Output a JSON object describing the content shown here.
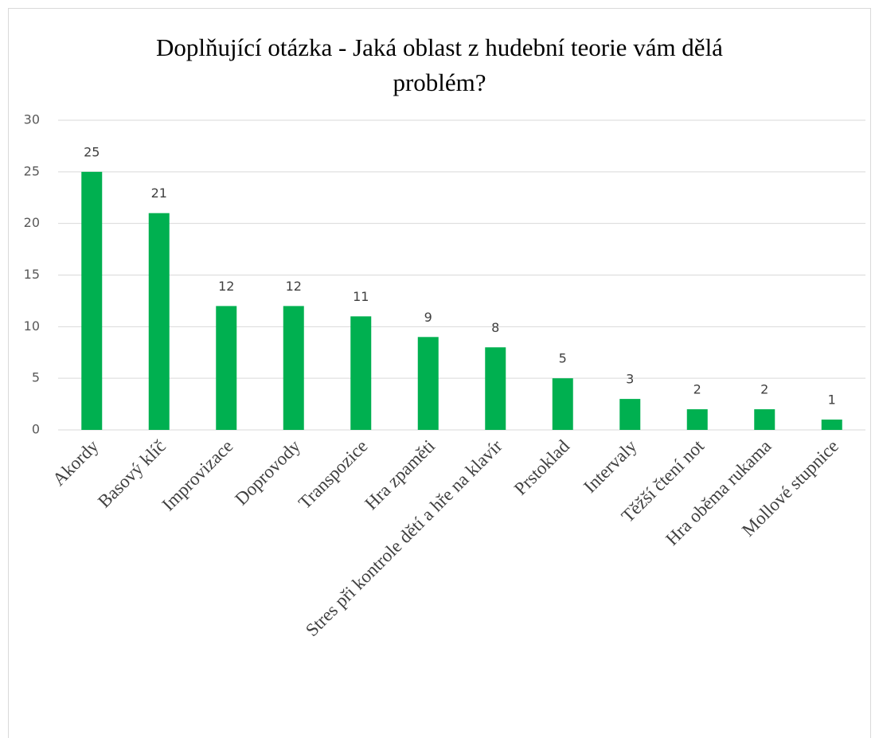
{
  "chart_data": {
    "type": "bar",
    "title": "Doplňující otázka - Jaká oblast z hudební teorie vám dělá problém?",
    "categories": [
      "Akordy",
      "Basový klíč",
      "Improvizace",
      "Doprovody",
      "Transpozice",
      "Hra zpaměti",
      "Stres při kontrole dětí a hře na klavír",
      "Prstoklad",
      "Intervaly",
      "Těžší čtení not",
      "Hra oběma rukama",
      "Mollové stupnice"
    ],
    "values": [
      25,
      21,
      12,
      12,
      11,
      9,
      8,
      5,
      3,
      2,
      2,
      1
    ],
    "color": "#00b050",
    "ylim": [
      0,
      30
    ],
    "yticks": [
      0,
      5,
      10,
      15,
      20,
      25,
      30
    ],
    "grid": true
  }
}
